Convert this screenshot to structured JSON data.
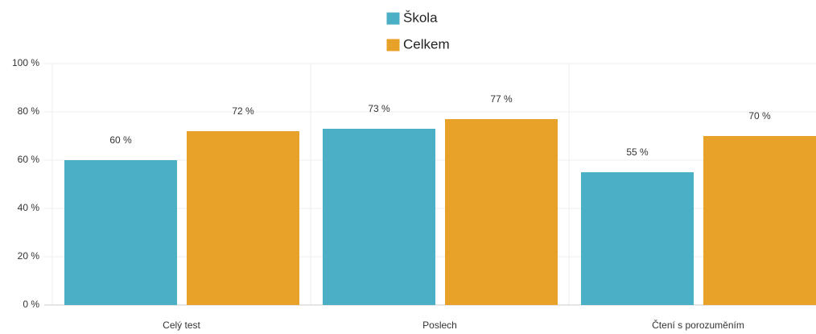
{
  "chart_data": {
    "type": "bar",
    "categories": [
      "Celý test",
      "Poslech",
      "Čtení s porozuměním"
    ],
    "series": [
      {
        "name": "Škola",
        "color": "#4bafc6",
        "values": [
          60,
          73,
          55
        ],
        "value_labels": [
          "60 %",
          "73 %",
          "55 %"
        ]
      },
      {
        "name": "Celkem",
        "color": "#e9a229",
        "values": [
          72,
          77,
          70
        ],
        "value_labels": [
          "72 %",
          "77 %",
          "70 %"
        ]
      }
    ],
    "ylim": [
      0,
      100
    ],
    "yticks": [
      {
        "value": 0,
        "label": "0 %"
      },
      {
        "value": 20,
        "label": "20 %"
      },
      {
        "value": 40,
        "label": "40 %"
      },
      {
        "value": 60,
        "label": "60 %"
      },
      {
        "value": 80,
        "label": "80 %"
      },
      {
        "value": 100,
        "label": "100 %"
      }
    ],
    "grid": true,
    "legend": "top"
  }
}
